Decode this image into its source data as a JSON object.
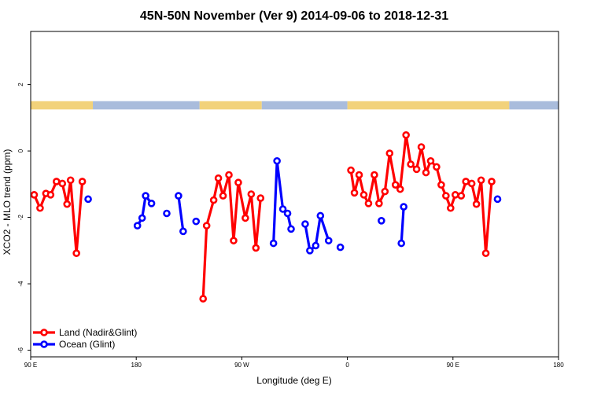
{
  "chart_data": {
    "type": "line",
    "title": "45N-50N November (Ver 9)   2014-09-06 to 2018-12-31",
    "xlabel": "Longitude (deg E)",
    "ylabel": "XCO2 - MLO trend (ppm)",
    "xlim": [
      90,
      540
    ],
    "ylim": [
      -6.2,
      3.6
    ],
    "x_ticks": [
      {
        "value": 90,
        "label": "90 E"
      },
      {
        "value": 180,
        "label": "180"
      },
      {
        "value": 270,
        "label": "90 W"
      },
      {
        "value": 360,
        "label": "0"
      },
      {
        "value": 450,
        "label": "90 E"
      },
      {
        "value": 540,
        "label": "180"
      }
    ],
    "y_ticks": [
      {
        "value": -6,
        "label": "-6"
      },
      {
        "value": -4,
        "label": "-4"
      },
      {
        "value": -2,
        "label": "-2"
      },
      {
        "value": 0,
        "label": "0"
      },
      {
        "value": 2,
        "label": "2"
      }
    ],
    "land_mask_band": {
      "y_range": [
        1.25,
        1.5
      ],
      "land_color": "#f2d27a",
      "ocean_color": "#a9bcdc",
      "segments": [
        {
          "from": 90,
          "to": 143,
          "type": "land"
        },
        {
          "from": 143,
          "to": 234,
          "type": "ocean"
        },
        {
          "from": 234,
          "to": 287,
          "type": "land"
        },
        {
          "from": 287,
          "to": 360,
          "type": "ocean"
        },
        {
          "from": 360,
          "to": 498,
          "type": "land"
        },
        {
          "from": 498,
          "to": 540,
          "type": "ocean"
        }
      ]
    },
    "series": [
      {
        "name": "Land (Nadir&Glint)",
        "color": "#ff0000",
        "segments": [
          [
            [
              93,
              -1.32
            ],
            [
              98,
              -1.72
            ],
            [
              103,
              -1.28
            ],
            [
              107,
              -1.32
            ],
            [
              112,
              -0.92
            ],
            [
              117,
              -0.98
            ],
            [
              121,
              -1.6
            ],
            [
              124,
              -0.88
            ],
            [
              129,
              -3.08
            ],
            [
              134,
              -0.92
            ]
          ],
          [
            [
              237,
              -4.45
            ],
            [
              240,
              -2.25
            ],
            [
              246,
              -1.48
            ],
            [
              250,
              -0.82
            ],
            [
              254,
              -1.35
            ],
            [
              259,
              -0.72
            ],
            [
              263,
              -2.7
            ],
            [
              267,
              -0.95
            ],
            [
              273,
              -2.02
            ],
            [
              278,
              -1.3
            ],
            [
              282,
              -2.92
            ],
            [
              286,
              -1.42
            ]
          ],
          [
            [
              363,
              -0.58
            ],
            [
              366,
              -1.26
            ],
            [
              370,
              -0.72
            ],
            [
              374,
              -1.32
            ],
            [
              378,
              -1.58
            ],
            [
              383,
              -0.72
            ],
            [
              387,
              -1.58
            ],
            [
              392,
              -1.22
            ],
            [
              396,
              -0.07
            ],
            [
              401,
              -1.02
            ],
            [
              405,
              -1.15
            ],
            [
              410,
              0.48
            ],
            [
              414,
              -0.4
            ],
            [
              419,
              -0.55
            ],
            [
              423,
              0.12
            ],
            [
              427,
              -0.65
            ],
            [
              431,
              -0.3
            ],
            [
              436,
              -0.48
            ],
            [
              440,
              -1.02
            ],
            [
              444,
              -1.35
            ],
            [
              448,
              -1.72
            ],
            [
              452,
              -1.32
            ],
            [
              457,
              -1.35
            ],
            [
              461,
              -0.92
            ],
            [
              466,
              -0.98
            ],
            [
              470,
              -1.6
            ],
            [
              474,
              -0.88
            ],
            [
              478,
              -3.08
            ],
            [
              483,
              -0.92
            ]
          ]
        ]
      },
      {
        "name": "Ocean (Glint)",
        "color": "#0000ff",
        "segments": [
          [
            [
              139,
              -1.45
            ]
          ],
          [
            [
              181,
              -2.25
            ],
            [
              185,
              -2.02
            ],
            [
              188,
              -1.35
            ],
            [
              193,
              -1.58
            ]
          ],
          [
            [
              206,
              -1.88
            ]
          ],
          [
            [
              216,
              -1.35
            ],
            [
              220,
              -2.42
            ]
          ],
          [
            [
              231,
              -2.12
            ]
          ],
          [
            [
              297,
              -2.78
            ],
            [
              300,
              -0.3
            ],
            [
              305,
              -1.75
            ],
            [
              309,
              -1.88
            ],
            [
              312,
              -2.35
            ]
          ],
          [
            [
              324,
              -2.2
            ],
            [
              328,
              -3.0
            ],
            [
              333,
              -2.85
            ],
            [
              337,
              -1.95
            ],
            [
              344,
              -2.7
            ]
          ],
          [
            [
              354,
              -2.9
            ]
          ],
          [
            [
              389,
              -2.1
            ]
          ],
          [
            [
              406,
              -2.78
            ],
            [
              408,
              -1.68
            ]
          ],
          [
            [
              488,
              -1.45
            ]
          ]
        ]
      }
    ],
    "legend": {
      "placement": "bottom-left",
      "entries": [
        "Land (Nadir&Glint)",
        "Ocean (Glint)"
      ]
    }
  }
}
